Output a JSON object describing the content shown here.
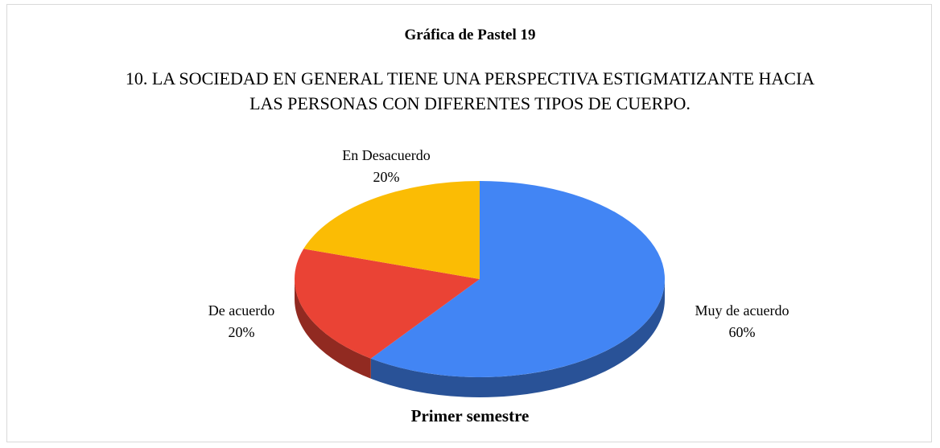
{
  "chart_data": {
    "type": "pie",
    "title": "Gráfica de Pastel 19",
    "subtitle": "10. LA SOCIEDAD EN GENERAL TIENE UNA PERSPECTIVA ESTIGMATIZANTE HACIA LAS PERSONAS CON DIFERENTES TIPOS DE CUERPO.",
    "xlabel": "Primer semestre",
    "categories": [
      "Muy de acuerdo",
      "De acuerdo",
      "En Desacuerdo"
    ],
    "values": [
      60,
      20,
      20
    ],
    "value_labels": [
      "60%",
      "20%",
      "20%"
    ],
    "colors": [
      "#4285f4",
      "#ea4335",
      "#fbbc04"
    ]
  }
}
